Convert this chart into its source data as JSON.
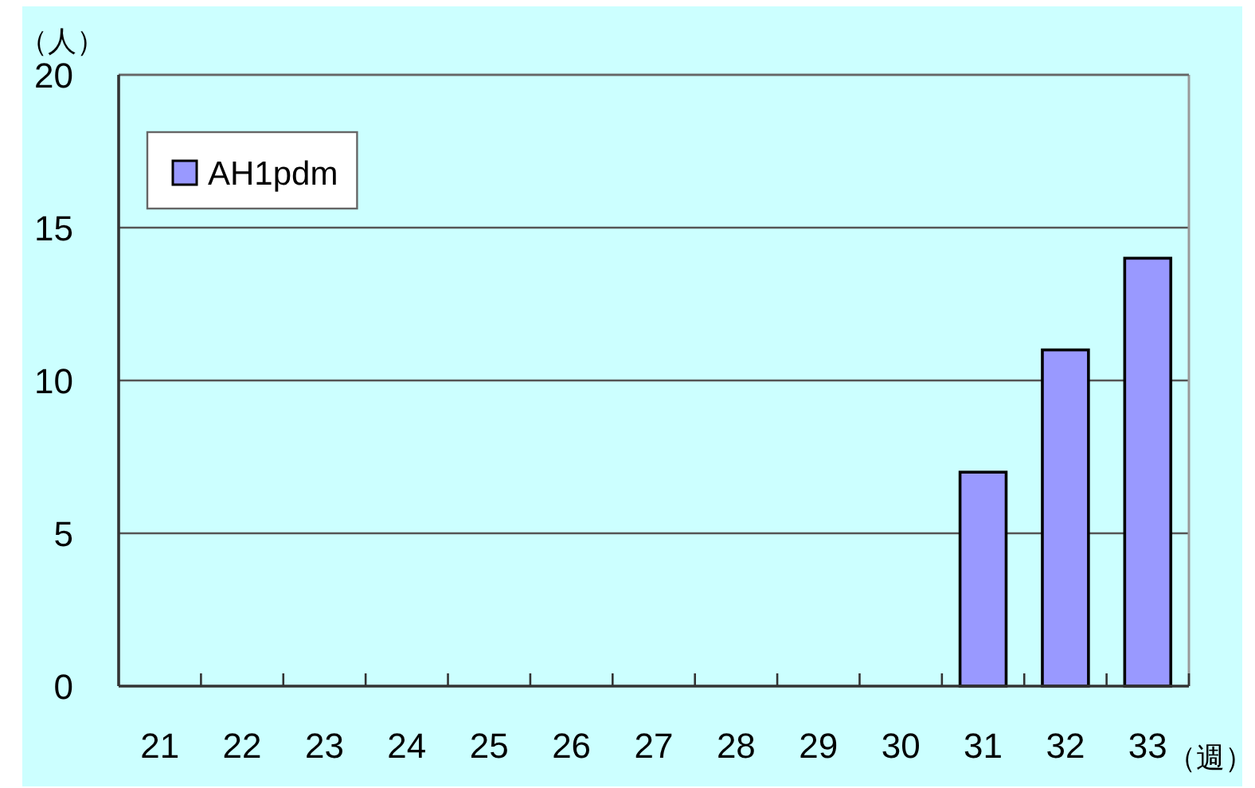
{
  "chart_data": {
    "type": "bar",
    "categories": [
      "21",
      "22",
      "23",
      "24",
      "25",
      "26",
      "27",
      "28",
      "29",
      "30",
      "31",
      "32",
      "33"
    ],
    "series": [
      {
        "name": "AH1pdm",
        "color": "#9999ff",
        "values": [
          0,
          0,
          0,
          0,
          0,
          0,
          0,
          0,
          0,
          0,
          7,
          11,
          14
        ]
      }
    ],
    "ylabel": "（人）",
    "xlabel": "（週）",
    "ylim": [
      0,
      20
    ],
    "yticks": [
      0,
      5,
      10,
      15,
      20
    ],
    "grid": "y",
    "legend": "top left"
  }
}
